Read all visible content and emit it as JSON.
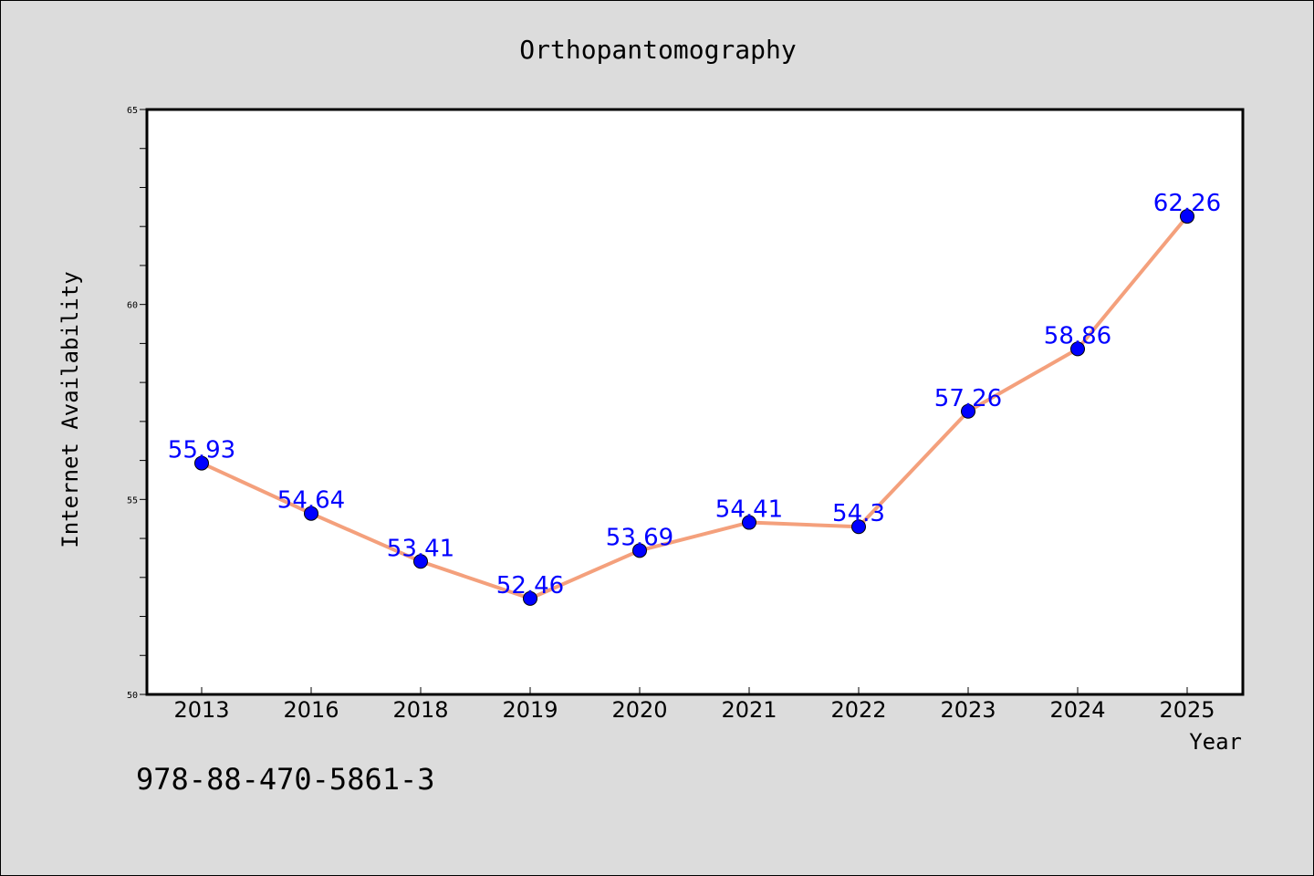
{
  "chart_data": {
    "type": "line",
    "title": "Orthopantomography",
    "xlabel": "Year",
    "ylabel": "Internet Availability",
    "categories": [
      "2013",
      "2016",
      "2018",
      "2019",
      "2020",
      "2021",
      "2022",
      "2023",
      "2024",
      "2025"
    ],
    "series": [
      {
        "values": [
          55.93,
          54.64,
          53.41,
          52.46,
          53.69,
          54.41,
          54.3,
          57.26,
          58.86,
          62.26
        ],
        "labels": [
          "55.93",
          "54.64",
          "53.41",
          "52.46",
          "53.69",
          "54.41",
          "54.3",
          "57.26",
          "58.86",
          "62.26"
        ]
      }
    ],
    "ylim": [
      50,
      65
    ],
    "yticks": [
      "50",
      "55",
      "60",
      "65"
    ],
    "grid": false,
    "colors": {
      "line": "#f4a07c",
      "marker": "#0000ff",
      "label": "#0000ff",
      "plot_background": "#ffffff",
      "figure_background": "#dcdcdc"
    }
  },
  "footer": {
    "isbn": "978-88-470-5861-3"
  }
}
